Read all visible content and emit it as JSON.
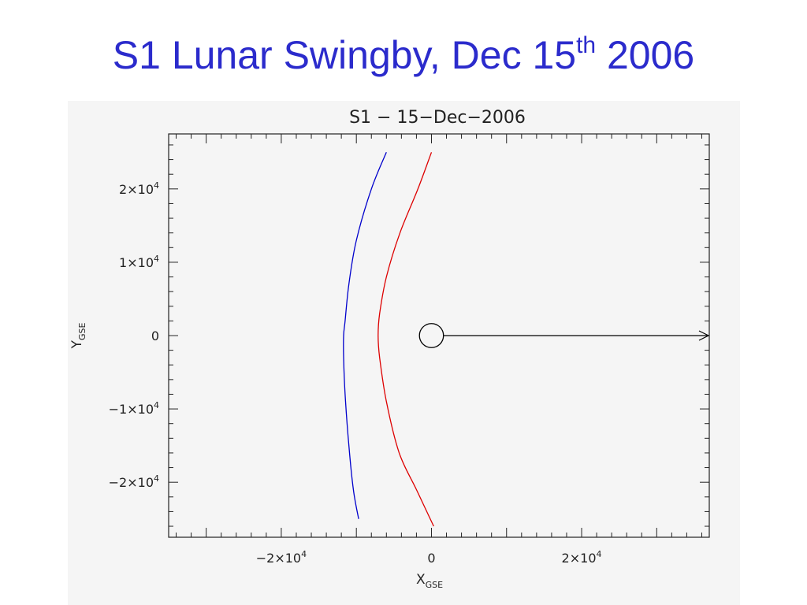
{
  "slide": {
    "title_main": "S1 Lunar Swingby, Dec 15",
    "title_sup": "th",
    "title_end": " 2006",
    "title_color": "#2b2bcc"
  },
  "chart_data": {
    "type": "line",
    "title": "S1 − 15−Dec−2006",
    "xlabel": "X",
    "xlabel_sub": "GSE",
    "ylabel": "Y",
    "ylabel_sub": "GSE",
    "xlim": [
      -35000,
      37000
    ],
    "ylim": [
      -27500,
      27500
    ],
    "x_ticks": [
      {
        "value": -20000,
        "label": "−2×10",
        "exp": "4"
      },
      {
        "value": 0,
        "label": "0",
        "exp": ""
      },
      {
        "value": 20000,
        "label": "2×10",
        "exp": "4"
      }
    ],
    "y_ticks": [
      {
        "value": 20000,
        "label": "2×10",
        "exp": "4"
      },
      {
        "value": 10000,
        "label": "1×10",
        "exp": "4"
      },
      {
        "value": 0,
        "label": "0",
        "exp": ""
      },
      {
        "value": -10000,
        "label": "−1×10",
        "exp": "4"
      },
      {
        "value": -20000,
        "label": "−2×10",
        "exp": "4"
      }
    ],
    "grid": false,
    "series": [
      {
        "color": "#0000cc",
        "x": [
          -6000,
          -8000,
          -10000,
          -11000,
          -11500,
          -11700,
          -11700,
          -11500,
          -11000,
          -10400,
          -9700
        ],
        "y": [
          25000,
          20000,
          13000,
          7000,
          2000,
          0,
          -3000,
          -8000,
          -15000,
          -21000,
          -25000
        ]
      },
      {
        "color": "#dd0000",
        "x": [
          0,
          -1800,
          -4200,
          -6000,
          -6900,
          -7100,
          -6900,
          -6000,
          -4300,
          -2000,
          300
        ],
        "y": [
          25000,
          20000,
          14000,
          8000,
          3000,
          0,
          -3000,
          -9000,
          -16000,
          -21000,
          -26000
        ]
      }
    ],
    "moon": {
      "x": 0,
      "y": 0,
      "radius": 1600,
      "color": "#000000"
    },
    "sun_arrow": {
      "x_from": 1600,
      "x_to": 37000,
      "y": 0,
      "color": "#000000"
    }
  }
}
